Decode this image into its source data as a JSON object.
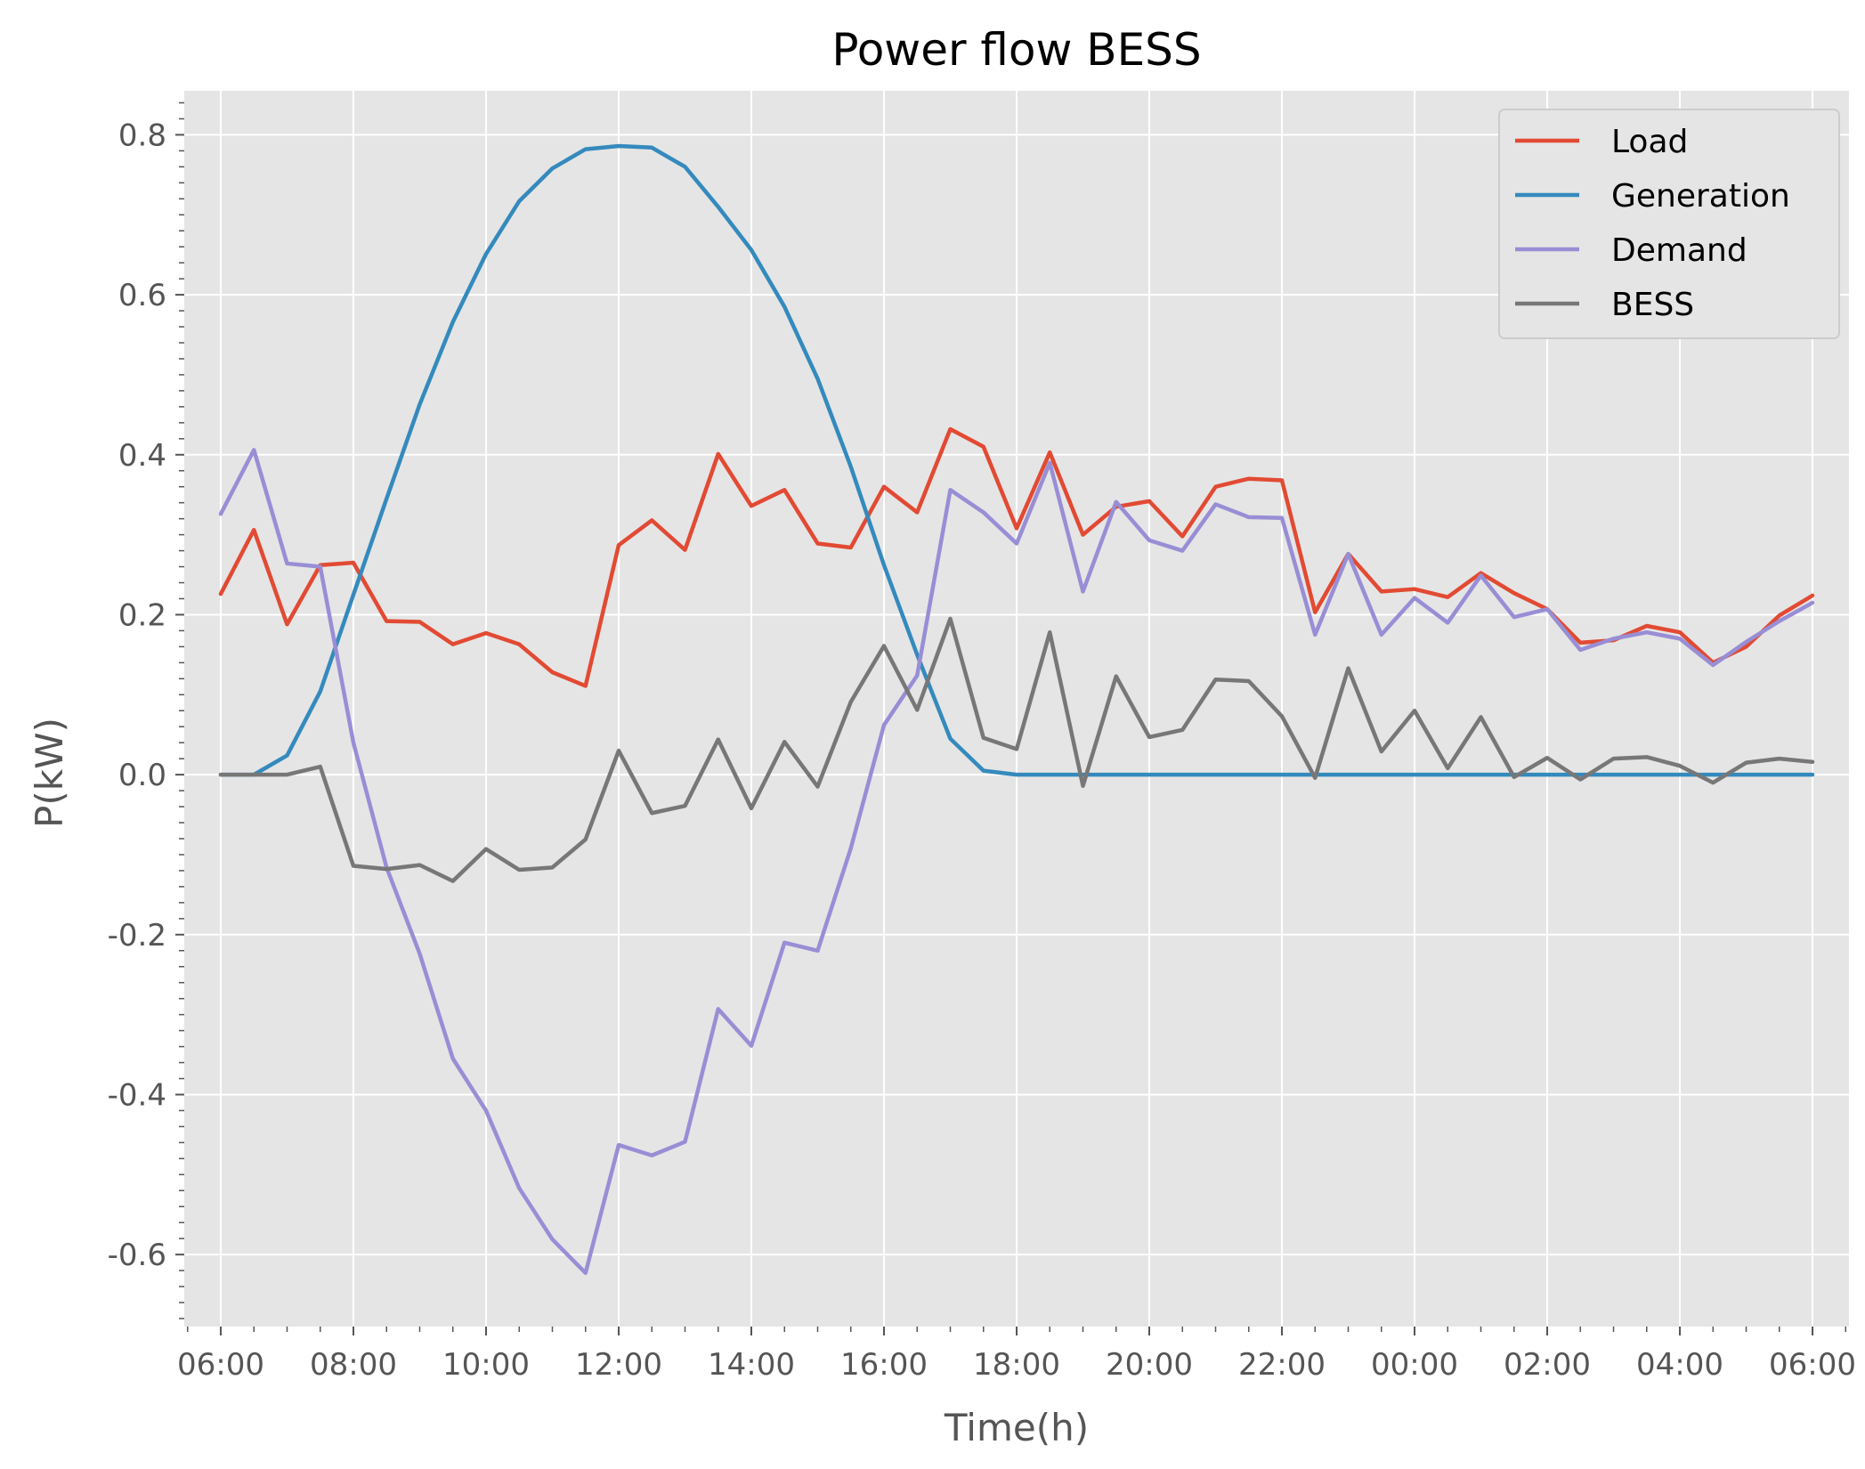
{
  "chart_data": {
    "type": "line",
    "title": "Power flow BESS",
    "xlabel": "Time(h)",
    "ylabel": "P(kW)",
    "ylim": [
      -0.69,
      0.855
    ],
    "xlim": [
      -1.1,
      49.1
    ],
    "grid": true,
    "legend_position": "top-right",
    "background": "#e5e5e5",
    "x_tick_labels": [
      "06:00",
      "08:00",
      "10:00",
      "12:00",
      "14:00",
      "16:00",
      "18:00",
      "20:00",
      "22:00",
      "00:00",
      "02:00",
      "04:00",
      "06:00"
    ],
    "y_ticks": [
      -0.6,
      -0.4,
      -0.2,
      0.0,
      0.2,
      0.4,
      0.6,
      0.8
    ],
    "y_tick_labels": [
      "-0.6",
      "-0.4",
      "-0.2",
      "0.0",
      "0.2",
      "0.4",
      "0.6",
      "0.8"
    ],
    "x": [
      "06:00",
      "06:30",
      "07:00",
      "07:30",
      "08:00",
      "08:30",
      "09:00",
      "09:30",
      "10:00",
      "10:30",
      "11:00",
      "11:30",
      "12:00",
      "12:30",
      "13:00",
      "13:30",
      "14:00",
      "14:30",
      "15:00",
      "15:30",
      "16:00",
      "16:30",
      "17:00",
      "17:30",
      "18:00",
      "18:30",
      "19:00",
      "19:30",
      "20:00",
      "20:30",
      "21:00",
      "21:30",
      "22:00",
      "22:30",
      "23:00",
      "23:30",
      "00:00",
      "00:30",
      "01:00",
      "01:30",
      "02:00",
      "02:30",
      "03:00",
      "03:30",
      "04:00",
      "04:30",
      "05:00",
      "05:30",
      "06:00"
    ],
    "series": [
      {
        "name": "Load",
        "color": "#e24a33",
        "values": [
          0.226,
          0.306,
          0.188,
          0.262,
          0.265,
          0.192,
          0.191,
          0.163,
          0.177,
          0.163,
          0.128,
          0.111,
          0.287,
          0.318,
          0.281,
          0.401,
          0.336,
          0.356,
          0.289,
          0.284,
          0.36,
          0.328,
          0.432,
          0.41,
          0.308,
          0.403,
          0.3,
          0.335,
          0.342,
          0.298,
          0.36,
          0.37,
          0.368,
          0.203,
          0.276,
          0.229,
          0.232,
          0.222,
          0.252,
          0.227,
          0.207,
          0.165,
          0.168,
          0.186,
          0.178,
          0.14,
          0.16,
          0.199,
          0.224
        ]
      },
      {
        "name": "Generation",
        "color": "#348abd",
        "values": [
          0.0,
          0.0,
          0.024,
          0.104,
          0.225,
          0.345,
          0.463,
          0.566,
          0.651,
          0.717,
          0.758,
          0.782,
          0.786,
          0.784,
          0.76,
          0.71,
          0.656,
          0.585,
          0.495,
          0.385,
          0.262,
          0.15,
          0.045,
          0.005,
          0.0,
          0.0,
          0.0,
          0.0,
          0.0,
          0.0,
          0.0,
          0.0,
          0.0,
          0.0,
          0.0,
          0.0,
          0.0,
          0.0,
          0.0,
          0.0,
          0.0,
          0.0,
          0.0,
          0.0,
          0.0,
          0.0,
          0.0,
          0.0,
          0.0
        ]
      },
      {
        "name": "Demand",
        "color": "#988ed5",
        "values": [
          0.326,
          0.406,
          0.264,
          0.26,
          0.04,
          -0.116,
          -0.224,
          -0.355,
          -0.42,
          -0.517,
          -0.581,
          -0.623,
          -0.463,
          -0.476,
          -0.459,
          -0.293,
          -0.339,
          -0.21,
          -0.22,
          -0.092,
          0.062,
          0.124,
          0.356,
          0.328,
          0.289,
          0.39,
          0.229,
          0.341,
          0.293,
          0.28,
          0.338,
          0.322,
          0.321,
          0.175,
          0.276,
          0.175,
          0.221,
          0.19,
          0.249,
          0.197,
          0.207,
          0.156,
          0.17,
          0.178,
          0.17,
          0.137,
          0.166,
          0.192,
          0.215
        ]
      },
      {
        "name": "BESS",
        "color": "#777777",
        "values": [
          0.0,
          0.0,
          0.0,
          0.01,
          -0.114,
          -0.118,
          -0.113,
          -0.133,
          -0.093,
          -0.119,
          -0.116,
          -0.081,
          0.03,
          -0.048,
          -0.039,
          0.044,
          -0.042,
          0.041,
          -0.015,
          0.091,
          0.161,
          0.081,
          0.195,
          0.046,
          0.032,
          0.178,
          -0.014,
          0.123,
          0.047,
          0.056,
          0.119,
          0.117,
          0.073,
          -0.004,
          0.133,
          0.029,
          0.08,
          0.008,
          0.072,
          -0.003,
          0.021,
          -0.006,
          0.02,
          0.022,
          0.011,
          -0.01,
          0.015,
          0.02,
          0.016
        ]
      }
    ]
  }
}
